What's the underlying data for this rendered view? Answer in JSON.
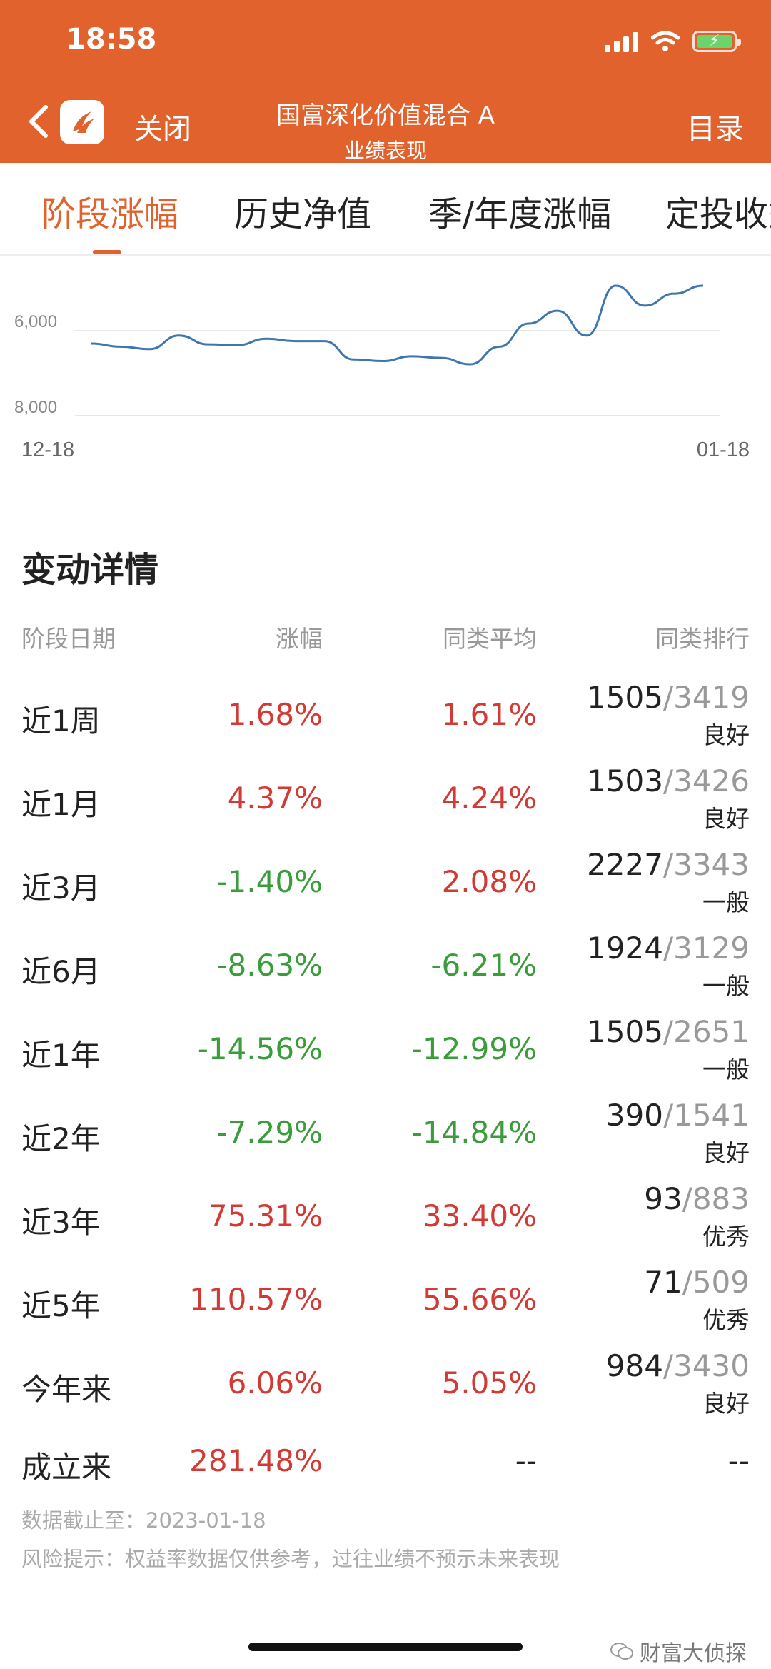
{
  "status_bar": {
    "time": "18:58"
  },
  "nav": {
    "close_label": "关闭",
    "title": "国富深化价值混合 A",
    "subtitle": "业绩表现",
    "menu_label": "目录"
  },
  "tabs": [
    {
      "label": "阶段涨幅",
      "active": true
    },
    {
      "label": "历史净值",
      "active": false
    },
    {
      "label": "季/年度涨幅",
      "active": false
    },
    {
      "label": "定投收益",
      "active": false
    }
  ],
  "chart_data": {
    "type": "line",
    "y_tick_labels": [
      "6,000",
      "8,000"
    ],
    "x_start_label": "12-18",
    "x_end_label": "01-18",
    "series": [
      {
        "values": [
          5.8,
          5.72,
          5.66,
          6.0,
          5.78,
          5.76,
          5.92,
          5.86,
          5.86,
          5.4,
          5.36,
          5.48,
          5.44,
          5.28,
          5.72,
          6.3,
          6.62,
          6.0,
          7.25,
          6.75,
          7.05,
          7.25
        ]
      }
    ],
    "color": "#3f76ae"
  },
  "details": {
    "title": "变动详情",
    "headers": {
      "period": "阶段日期",
      "change": "涨幅",
      "avg": "同类平均",
      "rank": "同类排行"
    },
    "rows": [
      {
        "period": "近1周",
        "change": "1.68%",
        "avg": "1.61%",
        "rank": "1505",
        "total": "/3419",
        "level": "良好"
      },
      {
        "period": "近1月",
        "change": "4.37%",
        "avg": "4.24%",
        "rank": "1503",
        "total": "/3426",
        "level": "良好"
      },
      {
        "period": "近3月",
        "change": "-1.40%",
        "avg": "2.08%",
        "rank": "2227",
        "total": "/3343",
        "level": "一般"
      },
      {
        "period": "近6月",
        "change": "-8.63%",
        "avg": "-6.21%",
        "rank": "1924",
        "total": "/3129",
        "level": "一般"
      },
      {
        "period": "近1年",
        "change": "-14.56%",
        "avg": "-12.99%",
        "rank": "1505",
        "total": "/2651",
        "level": "一般"
      },
      {
        "period": "近2年",
        "change": "-7.29%",
        "avg": "-14.84%",
        "rank": "390",
        "total": "/1541",
        "level": "良好"
      },
      {
        "period": "近3年",
        "change": "75.31%",
        "avg": "33.40%",
        "rank": "93",
        "total": "/883",
        "level": "优秀"
      },
      {
        "period": "近5年",
        "change": "110.57%",
        "avg": "55.66%",
        "rank": "71",
        "total": "/509",
        "level": "优秀"
      },
      {
        "period": "今年来",
        "change": "6.06%",
        "avg": "5.05%",
        "rank": "984",
        "total": "/3430",
        "level": "良好"
      },
      {
        "period": "成立来",
        "change": "281.48%",
        "avg": "--",
        "rank": "--",
        "total": "",
        "level": ""
      }
    ]
  },
  "footer": {
    "date_line": "数据截止至：2023-01-18",
    "risk_line": "风险提示：权益率数据仅供参考，过往业绩不预示未来表现"
  },
  "watermark": "财富大侦探",
  "colors": {
    "brand": "#e1622c",
    "up": "#d23b35",
    "down": "#3a9c3a"
  }
}
